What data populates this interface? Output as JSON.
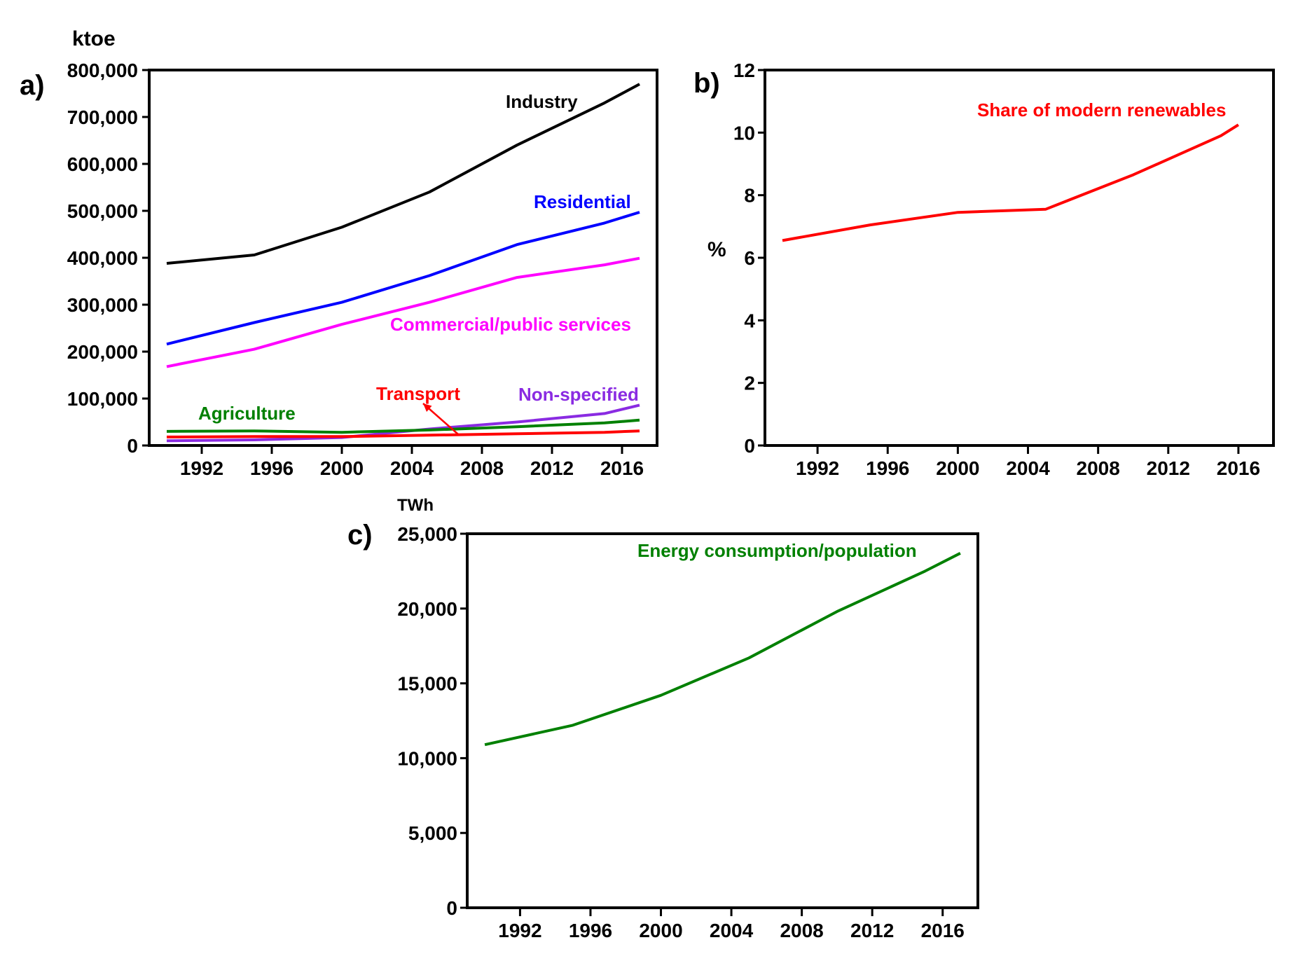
{
  "chart_data": [
    {
      "type": "line",
      "panel_label": "a)",
      "unit_label": "ktoe",
      "x": [
        1990,
        1995,
        2000,
        2005,
        2010,
        2015,
        2017
      ],
      "xticks": [
        "1992",
        "1996",
        "2000",
        "2004",
        "2008",
        "2012",
        "2016"
      ],
      "xlim": [
        1989,
        2018
      ],
      "ylim": [
        0,
        800000
      ],
      "yticks": [
        "0",
        "100,000",
        "200,000",
        "300,000",
        "400,000",
        "500,000",
        "600,000",
        "700,000",
        "800,000"
      ],
      "series": [
        {
          "name": "Industry",
          "color": "#000000",
          "values": [
            388000,
            406000,
            465000,
            540000,
            640000,
            730000,
            770000
          ]
        },
        {
          "name": "Residential",
          "color": "#0000ff",
          "values": [
            216000,
            262000,
            305000,
            362000,
            428000,
            474000,
            497000
          ]
        },
        {
          "name": "Commercial/public services",
          "color": "#ff00ff",
          "values": [
            168000,
            205000,
            258000,
            305000,
            358000,
            385000,
            399000
          ]
        },
        {
          "name": "Non-specified",
          "color": "#8a2be2",
          "values": [
            10000,
            12000,
            17000,
            35000,
            50000,
            68000,
            86000
          ]
        },
        {
          "name": "Agriculture",
          "color": "#008000",
          "values": [
            30000,
            31000,
            28000,
            33000,
            40000,
            48000,
            54000
          ]
        },
        {
          "name": "Transport",
          "color": "#ff0000",
          "values": [
            18000,
            19000,
            19000,
            22000,
            25000,
            28000,
            31000
          ]
        }
      ]
    },
    {
      "type": "line",
      "panel_label": "b)",
      "unit_label": "%",
      "x": [
        1990,
        1995,
        2000,
        2005,
        2010,
        2015,
        2016
      ],
      "xticks": [
        "1992",
        "1996",
        "2000",
        "2004",
        "2008",
        "2012",
        "2016"
      ],
      "xlim": [
        1989,
        2018
      ],
      "ylim": [
        0,
        12
      ],
      "yticks": [
        "0",
        "2",
        "4",
        "6",
        "8",
        "10",
        "12"
      ],
      "series": [
        {
          "name": "Share of modern renewables",
          "color": "#ff0000",
          "values": [
            6.55,
            7.05,
            7.45,
            7.55,
            8.65,
            9.9,
            10.25
          ]
        }
      ]
    },
    {
      "type": "line",
      "panel_label": "c)",
      "unit_label": "TWh",
      "x": [
        1990,
        1995,
        2000,
        2005,
        2010,
        2015,
        2017
      ],
      "xticks": [
        "1992",
        "1996",
        "2000",
        "2004",
        "2008",
        "2012",
        "2016"
      ],
      "xlim": [
        1989,
        2018
      ],
      "ylim": [
        0,
        25000
      ],
      "yticks": [
        "0",
        "5,000",
        "10,000",
        "15,000",
        "20,000",
        "25,000"
      ],
      "series": [
        {
          "name": "Energy consumption/population",
          "color": "#008000",
          "values": [
            10900,
            12200,
            14200,
            16700,
            19800,
            22500,
            23700
          ]
        }
      ]
    }
  ]
}
